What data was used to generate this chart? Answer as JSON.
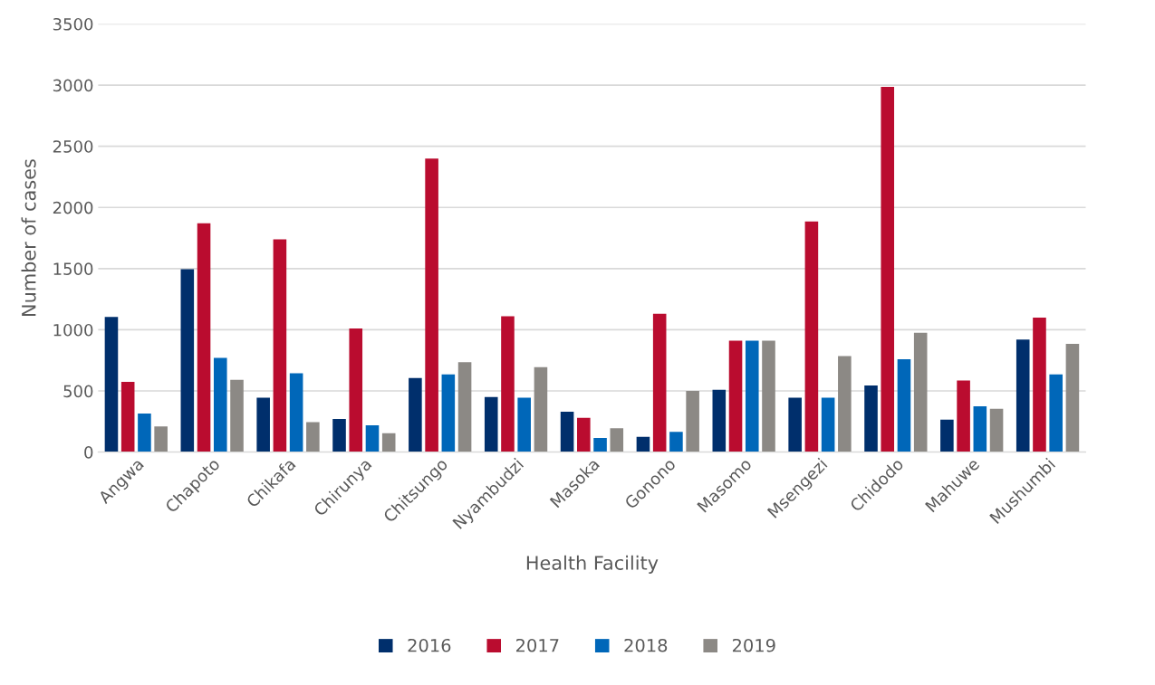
{
  "chart_data": {
    "type": "bar",
    "xlabel": "Health Facility",
    "ylabel": "Number of cases",
    "categories": [
      "Angwa",
      "Chapoto",
      "Chikafa",
      "Chirunya",
      "Chitsungo",
      "Nyambudzi",
      "Masoka",
      "Gonono",
      "Masomo",
      "Msengezi",
      "Chidodo",
      "Mahuwe",
      "Mushumbi"
    ],
    "series": [
      {
        "name": "2016",
        "color": "#002f6c",
        "values": [
          1105,
          1495,
          445,
          270,
          605,
          450,
          330,
          125,
          510,
          445,
          545,
          265,
          920
        ]
      },
      {
        "name": "2017",
        "color": "#ba0c2f",
        "values": [
          575,
          1870,
          1740,
          1010,
          2400,
          1110,
          280,
          1130,
          910,
          1885,
          2985,
          585,
          1100
        ]
      },
      {
        "name": "2018",
        "color": "#0067b9",
        "values": [
          315,
          770,
          645,
          220,
          635,
          445,
          115,
          165,
          910,
          445,
          760,
          375,
          635
        ]
      },
      {
        "name": "2019",
        "color": "#8c8985",
        "values": [
          210,
          590,
          245,
          155,
          735,
          695,
          195,
          500,
          910,
          785,
          975,
          355,
          885
        ]
      }
    ],
    "ylim": [
      0,
      3500
    ],
    "yticks": [
      0,
      500,
      1000,
      1500,
      2000,
      2500,
      3000,
      3500
    ],
    "grid": "y",
    "legend": "bottom"
  }
}
